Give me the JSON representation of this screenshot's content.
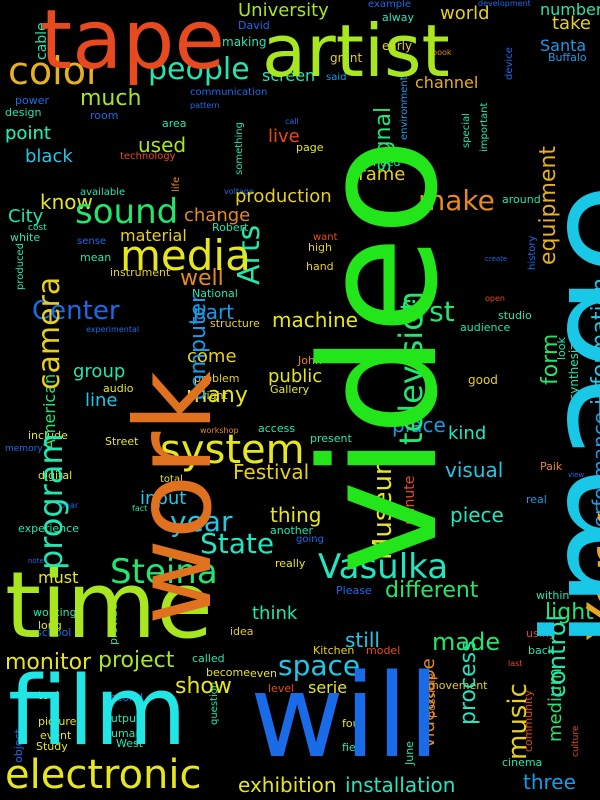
{
  "words": [
    {
      "text": "video",
      "color": "#22e619",
      "rotated": true
    },
    {
      "text": "image",
      "color": "#19c7e6",
      "rotated": true
    },
    {
      "text": "work",
      "color": "#e0711f",
      "rotated": true
    },
    {
      "text": "time",
      "color": "#a8e61f",
      "rotated": false
    },
    {
      "text": "will",
      "color": "#1a6be8",
      "rotated": false
    },
    {
      "text": "film",
      "color": "#22e6e6",
      "rotated": false
    },
    {
      "text": "tape",
      "color": "#e84a1f",
      "rotated": false
    },
    {
      "text": "artist",
      "color": "#a8e61f",
      "rotated": false
    },
    {
      "text": "York",
      "color": "#e6a81f",
      "rotated": true
    },
    {
      "text": "electronic",
      "color": "#e6e61f",
      "rotated": false
    },
    {
      "text": "Steina",
      "color": "#22e671",
      "rotated": false
    },
    {
      "text": "Vasulka",
      "color": "#22e6c0",
      "rotated": false
    },
    {
      "text": "system",
      "color": "#e6e61f",
      "rotated": false
    },
    {
      "text": "color",
      "color": "#e6b01f",
      "rotated": false
    },
    {
      "text": "sound",
      "color": "#22e66b",
      "rotated": false
    },
    {
      "text": "media",
      "color": "#e6e61f",
      "rotated": false
    },
    {
      "text": "program",
      "color": "#22e6b0",
      "rotated": true
    },
    {
      "text": "camera",
      "color": "#e6d01f",
      "rotated": true
    },
    {
      "text": "television",
      "color": "#22e671",
      "rotated": true
    },
    {
      "text": "people",
      "color": "#22e6b0",
      "rotated": false
    },
    {
      "text": "Arts",
      "color": "#22e6b0",
      "rotated": true
    },
    {
      "text": "Woody",
      "color": "#e6891f",
      "rotated": true
    },
    {
      "text": "Museum",
      "color": "#e6e61f",
      "rotated": true
    },
    {
      "text": "space",
      "color": "#22c7e6",
      "rotated": false
    },
    {
      "text": "State",
      "color": "#22e6c0",
      "rotated": false
    },
    {
      "text": "music",
      "color": "#e6d01f",
      "rotated": true
    },
    {
      "text": "make",
      "color": "#e6891f",
      "rotated": false
    },
    {
      "text": "first",
      "color": "#22e671",
      "rotated": false
    },
    {
      "text": "Center",
      "color": "#1a6be8",
      "rotated": false
    },
    {
      "text": "year",
      "color": "#22c7e6",
      "rotated": false
    },
    {
      "text": "monitor",
      "color": "#e6e61f",
      "rotated": false
    },
    {
      "text": "project",
      "color": "#a8e61f",
      "rotated": false
    },
    {
      "text": "control",
      "color": "#22e6b0",
      "rotated": true
    },
    {
      "text": "form",
      "color": "#22e66b",
      "rotated": true
    },
    {
      "text": "computer",
      "color": "#1a9be8",
      "rotated": true
    },
    {
      "text": "information",
      "color": "#22c7e6",
      "rotated": true
    },
    {
      "text": "made",
      "color": "#22e66b",
      "rotated": false
    },
    {
      "text": "show",
      "color": "#e6e61f",
      "rotated": false
    },
    {
      "text": "exhibition",
      "color": "#e6e61f",
      "rotated": false
    },
    {
      "text": "installation",
      "color": "#22e6c0",
      "rotated": false
    },
    {
      "text": "different",
      "color": "#22e66b",
      "rotated": false
    },
    {
      "text": "light",
      "color": "#22e671",
      "rotated": false
    },
    {
      "text": "process",
      "color": "#22e6c0",
      "rotated": true
    },
    {
      "text": "much",
      "color": "#a8e61f",
      "rotated": false
    },
    {
      "text": "Festival",
      "color": "#e6d01f",
      "rotated": false
    },
    {
      "text": "many",
      "color": "#e6e61f",
      "rotated": false
    },
    {
      "text": "know",
      "color": "#e6e61f",
      "rotated": false
    },
    {
      "text": "well",
      "color": "#e6891f",
      "rotated": false
    },
    {
      "text": "equipment",
      "color": "#e6b01f",
      "rotated": true
    },
    {
      "text": "signal",
      "color": "#22e671",
      "rotated": true
    },
    {
      "text": "three",
      "color": "#1a9be8",
      "rotated": false
    },
    {
      "text": "performance",
      "color": "#1a9be8",
      "rotated": true
    },
    {
      "text": "videotape",
      "color": "#e6891f",
      "rotated": true
    },
    {
      "text": "medium",
      "color": "#22e66b",
      "rotated": true
    },
    {
      "text": "visual",
      "color": "#22c7e6",
      "rotated": false
    },
    {
      "text": "piece",
      "color": "#22e6c0",
      "rotated": false
    },
    {
      "text": "place",
      "color": "#1a9be8",
      "rotated": false
    },
    {
      "text": "still",
      "color": "#22c7e6",
      "rotated": false
    },
    {
      "text": "kind",
      "color": "#22e6c0",
      "rotated": false
    },
    {
      "text": "thing",
      "color": "#e6e61f",
      "rotated": false
    },
    {
      "text": "think",
      "color": "#22e6b0",
      "rotated": false
    },
    {
      "text": "input",
      "color": "#22c7e6",
      "rotated": false
    },
    {
      "text": "machine",
      "color": "#e6e61f",
      "rotated": false
    },
    {
      "text": "public",
      "color": "#e6e61f",
      "rotated": false
    },
    {
      "text": "come",
      "color": "#e6d01f",
      "rotated": false
    },
    {
      "text": "part",
      "color": "#1a9be8",
      "rotated": false
    },
    {
      "text": "used",
      "color": "#a8e61f",
      "rotated": false
    },
    {
      "text": "line",
      "color": "#22c7e6",
      "rotated": false
    },
    {
      "text": "group",
      "color": "#22e6b0",
      "rotated": false
    },
    {
      "text": "point",
      "color": "#22e6b0",
      "rotated": false
    },
    {
      "text": "black",
      "color": "#22c7e6",
      "rotated": false
    },
    {
      "text": "frame",
      "color": "#e6d01f",
      "rotated": false
    },
    {
      "text": "production",
      "color": "#e6d01f",
      "rotated": false
    },
    {
      "text": "change",
      "color": "#e6891f",
      "rotated": false
    },
    {
      "text": "material",
      "color": "#e6d01f",
      "rotated": false
    },
    {
      "text": "world",
      "color": "#e6d01f",
      "rotated": false
    },
    {
      "text": "channel",
      "color": "#e6b01f",
      "rotated": false
    },
    {
      "text": "screen",
      "color": "#22e6c0",
      "rotated": false
    },
    {
      "text": "University",
      "color": "#a8e61f",
      "rotated": false
    },
    {
      "text": "number",
      "color": "#22e6b0",
      "rotated": false
    },
    {
      "text": "take",
      "color": "#e6d01f",
      "rotated": false
    },
    {
      "text": "Santa",
      "color": "#1a9be8",
      "rotated": false
    },
    {
      "text": "Buffalo",
      "color": "#1a9be8",
      "rotated": false
    },
    {
      "text": "City",
      "color": "#22e6b0",
      "rotated": false
    },
    {
      "text": "American",
      "color": "#22e671",
      "rotated": true
    },
    {
      "text": "must",
      "color": "#e6e61f",
      "rotated": false
    },
    {
      "text": "live",
      "color": "#e84a1f",
      "rotated": false
    },
    {
      "text": "Director",
      "color": "#1a9be8",
      "rotated": true
    },
    {
      "text": "serie",
      "color": "#e6e61f",
      "rotated": false
    },
    {
      "text": "room",
      "color": "#1a6be8",
      "rotated": false
    },
    {
      "text": "point",
      "color": "#22e6b0",
      "rotated": false
    }
  ],
  "small_words": [
    {
      "text": "cable",
      "color": "#22e6b0"
    },
    {
      "text": "David",
      "color": "#1a6be8"
    },
    {
      "text": "making",
      "color": "#22e6b0"
    },
    {
      "text": "grant",
      "color": "#e6d01f"
    },
    {
      "text": "said",
      "color": "#1a9be8"
    },
    {
      "text": "early",
      "color": "#e6d01f"
    },
    {
      "text": "book",
      "color": "#e6891f"
    },
    {
      "text": "example",
      "color": "#1a6be8"
    },
    {
      "text": "alway",
      "color": "#22e6c0"
    },
    {
      "text": "device",
      "color": "#1a6be8"
    },
    {
      "text": "development",
      "color": "#1a6be8"
    },
    {
      "text": "power",
      "color": "#1a6be8"
    },
    {
      "text": "design",
      "color": "#22e6b0"
    },
    {
      "text": "communication",
      "color": "#1a6be8"
    },
    {
      "text": "pattern",
      "color": "#1a6be8"
    },
    {
      "text": "area",
      "color": "#22e6b0"
    },
    {
      "text": "call",
      "color": "#1a6be8"
    },
    {
      "text": "page",
      "color": "#e6e61f"
    },
    {
      "text": "need",
      "color": "#22e6b0"
    },
    {
      "text": "environment",
      "color": "#1a9be8"
    },
    {
      "text": "important",
      "color": "#22e6b0"
    },
    {
      "text": "special",
      "color": "#22e6b0"
    },
    {
      "text": "technology",
      "color": "#e84a1f"
    },
    {
      "text": "life",
      "color": "#e6891f"
    },
    {
      "text": "voltage",
      "color": "#1a6be8"
    },
    {
      "text": "something",
      "color": "#22e6b0"
    },
    {
      "text": "want",
      "color": "#e84a1f"
    },
    {
      "text": "available",
      "color": "#22e6b0"
    },
    {
      "text": "around",
      "color": "#22e6b0"
    },
    {
      "text": "white",
      "color": "#22e6b0"
    },
    {
      "text": "sense",
      "color": "#1a6be8"
    },
    {
      "text": "Robert",
      "color": "#22e6b0"
    },
    {
      "text": "high",
      "color": "#e6d01f"
    },
    {
      "text": "hand",
      "color": "#e6d01f"
    },
    {
      "text": "cost",
      "color": "#22e6b0"
    },
    {
      "text": "mean",
      "color": "#22e6b0"
    },
    {
      "text": "produced",
      "color": "#22e6b0"
    },
    {
      "text": "instrument",
      "color": "#e6d01f"
    },
    {
      "text": "National",
      "color": "#22e6b0"
    },
    {
      "text": "create",
      "color": "#1a6be8"
    },
    {
      "text": "history",
      "color": "#1a6be8"
    },
    {
      "text": "open",
      "color": "#e84a1f"
    },
    {
      "text": "studio",
      "color": "#22e6b0"
    },
    {
      "text": "audience",
      "color": "#22e6b0"
    },
    {
      "text": "individual",
      "color": "#22e6b0"
    },
    {
      "text": "effect",
      "color": "#22e6b0"
    },
    {
      "text": "experimental",
      "color": "#1a6be8"
    },
    {
      "text": "structure",
      "color": "#e6d01f"
    },
    {
      "text": "look",
      "color": "#22e6b0"
    },
    {
      "text": "John",
      "color": "#e6891f"
    },
    {
      "text": "problem",
      "color": "#e6d01f"
    },
    {
      "text": "Gallery",
      "color": "#e6e61f"
    },
    {
      "text": "good",
      "color": "#e6d01f"
    },
    {
      "text": "synthesizer",
      "color": "#22e6b0"
    },
    {
      "text": "audio",
      "color": "#e6e61f"
    },
    {
      "text": "right",
      "color": "#e6e61f"
    },
    {
      "text": "workshop",
      "color": "#e6891f"
    },
    {
      "text": "access",
      "color": "#22e6b0"
    },
    {
      "text": "present",
      "color": "#22e6b0"
    },
    {
      "text": "include",
      "color": "#e6e61f"
    },
    {
      "text": "Street",
      "color": "#e6e61f"
    },
    {
      "text": "memory",
      "color": "#1a6be8"
    },
    {
      "text": "digital",
      "color": "#e6e61f"
    },
    {
      "text": "total",
      "color": "#e6e61f"
    },
    {
      "text": "minute",
      "color": "#e84a1f"
    },
    {
      "text": "Paik",
      "color": "#e6891f"
    },
    {
      "text": "view",
      "color": "#1a6be8"
    },
    {
      "text": "real",
      "color": "#1a9be8"
    },
    {
      "text": "fact",
      "color": "#22e6b0"
    },
    {
      "text": "bear",
      "color": "#1a6be8"
    },
    {
      "text": "experience",
      "color": "#22e6b0"
    },
    {
      "text": "another",
      "color": "#22e6b0"
    },
    {
      "text": "going",
      "color": "#1a6be8"
    },
    {
      "text": "really",
      "color": "#e6e61f"
    },
    {
      "text": "note",
      "color": "#1a6be8"
    },
    {
      "text": "within",
      "color": "#22e6b0"
    },
    {
      "text": "working",
      "color": "#22e6b0"
    },
    {
      "text": "long",
      "color": "#e6e61f"
    },
    {
      "text": "school",
      "color": "#1a6be8"
    },
    {
      "text": "provide",
      "color": "#22e6b0"
    },
    {
      "text": "Please",
      "color": "#1a6be8"
    },
    {
      "text": "idea",
      "color": "#e6d01f"
    },
    {
      "text": "Kitchen",
      "color": "#e6d01f"
    },
    {
      "text": "model",
      "color": "#e84a1f"
    },
    {
      "text": "using",
      "color": "#e84a1f"
    },
    {
      "text": "called",
      "color": "#22e6b0"
    },
    {
      "text": "become",
      "color": "#e6e61f"
    },
    {
      "text": "movement",
      "color": "#e6d01f"
    },
    {
      "text": "back",
      "color": "#22e6b0"
    },
    {
      "text": "even",
      "color": "#e6e61f"
    },
    {
      "text": "level",
      "color": "#e84a1f"
    },
    {
      "text": "possible",
      "color": "#e6891f"
    },
    {
      "text": "last",
      "color": "#e84a1f"
    },
    {
      "text": "tool",
      "color": "#e6e61f"
    },
    {
      "text": "second",
      "color": "#1a6be8"
    },
    {
      "text": "output",
      "color": "#22e6b0"
    },
    {
      "text": "human",
      "color": "#22e6b0"
    },
    {
      "text": "picture",
      "color": "#e6e61f"
    },
    {
      "text": "event",
      "color": "#e6e61f"
    },
    {
      "text": "West",
      "color": "#22e6b0"
    },
    {
      "text": "question",
      "color": "#22e6b0"
    },
    {
      "text": "community",
      "color": "#e84a1f"
    },
    {
      "text": "Study",
      "color": "#e6e61f"
    },
    {
      "text": "field",
      "color": "#22e6b0"
    },
    {
      "text": "four",
      "color": "#e6e61f"
    },
    {
      "text": "June",
      "color": "#22e6b0"
    },
    {
      "text": "cinema",
      "color": "#22e6b0"
    },
    {
      "text": "object",
      "color": "#1a6be8"
    },
    {
      "text": "culture",
      "color": "#e84a1f"
    },
    {
      "text": "without",
      "color": "#1a6be8"
    }
  ]
}
